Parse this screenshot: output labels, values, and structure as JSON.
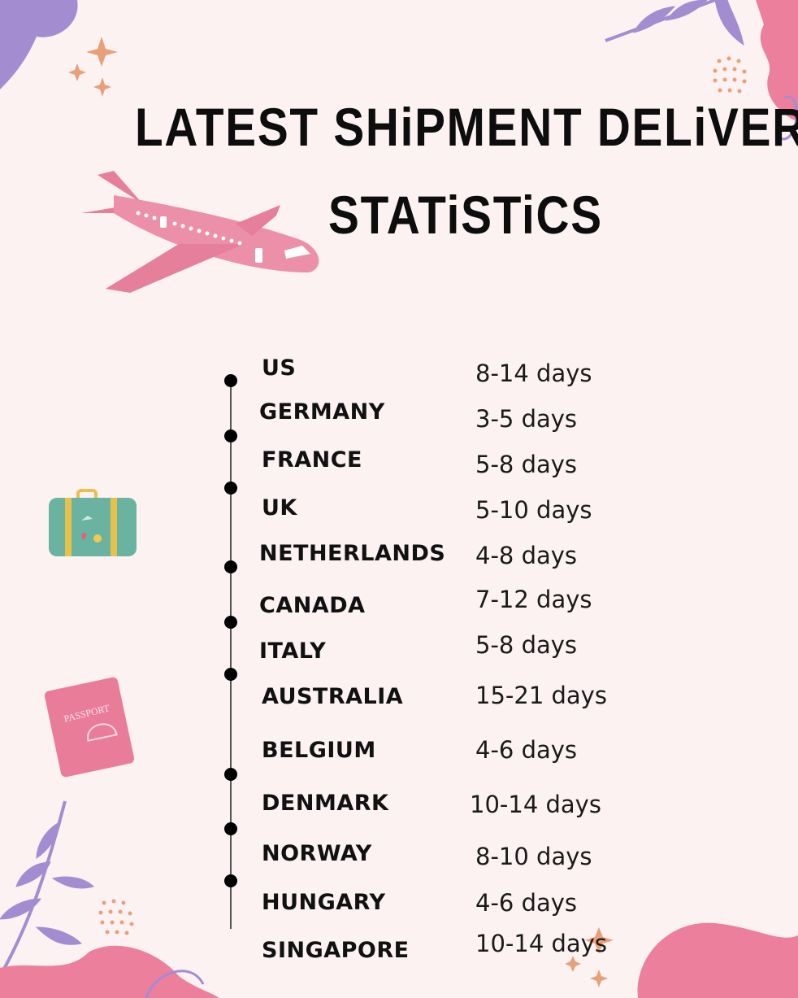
{
  "title": {
    "line1": "LATEST SHiPMENT DELiVERY",
    "line2": "STATiSTiCS"
  },
  "rows": [
    {
      "country": "US",
      "time": "8-14 days"
    },
    {
      "country": "GERMANY",
      "time": "3-5 days"
    },
    {
      "country": "FRANCE",
      "time": "5-8 days"
    },
    {
      "country": "UK",
      "time": "5-10 days"
    },
    {
      "country": "NETHERLANDS",
      "time": "4-8 days"
    },
    {
      "country": "CANADA",
      "time": "7-12 days"
    },
    {
      "country": "ITALY",
      "time": "5-8 days"
    },
    {
      "country": "AUSTRALIA",
      "time": "15-21 days"
    },
    {
      "country": "BELGIUM",
      "time": "4-6 days"
    },
    {
      "country": "DENMARK",
      "time": "10-14 days"
    },
    {
      "country": "NORWAY",
      "time": "8-10 days"
    },
    {
      "country": "HUNGARY",
      "time": "4-6 days"
    },
    {
      "country": "SINGAPORE",
      "time": "10-14 days"
    }
  ],
  "decorations": {
    "passport_text": "PASSPORT",
    "icons": [
      "airplane-icon",
      "suitcase-icon",
      "passport-icon",
      "leaf-icon",
      "sparkle-icon",
      "blob-shape"
    ]
  },
  "colors": {
    "background": "#fcf2f2",
    "pink": "#ec7f9c",
    "lavender": "#a48cd0",
    "peach": "#e8a07a",
    "text": "#111111"
  }
}
